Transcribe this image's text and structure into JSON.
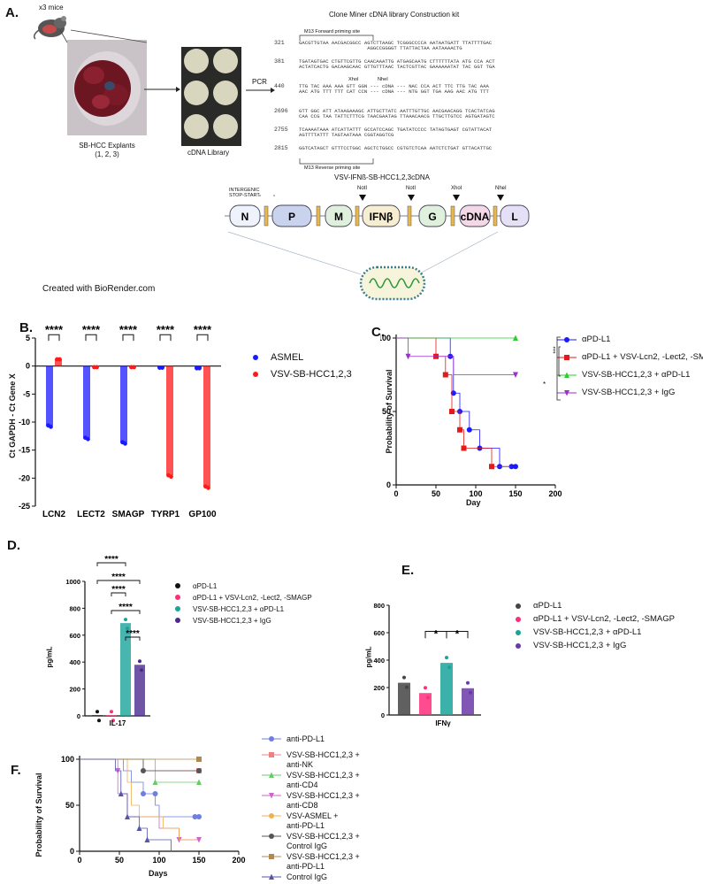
{
  "panels": {
    "a": {
      "letter": "A.",
      "mice_label": "x3 mice",
      "explant_label_line1": "SB-HCC Explants",
      "explant_label_line2": "(1, 2, 3)",
      "cdna_library_label": "cDNA Library",
      "pcr_label": "PCR",
      "kit_title": "Clone Miner cDNA library Construction kit",
      "m13_forward": "M13 Forward priming site",
      "m13_reverse": "M13 Reverse priming site",
      "seq_positions": [
        "321",
        "381",
        "440",
        "2696",
        "2755",
        "2815"
      ],
      "seq_lines": [
        [
          "GACGTTGTAA AACGACGGCC AGTCTTAAGC TCGGGCCCCA AATAATGATT TTATTTTGAC",
          "                       AGGCCGGGGT TTATTACTAA AATAAAACTG"
        ],
        [
          "TGATAGTGAC CTGTTCGTTG CAACAAATTG ATGAGCAATG CTTTTTTATA ATG CCA ACT",
          "ACTATCACTG GACAAGCAAC GTTGTTTAAC TACTCGTTAC GAAAAAATAT TAC GGT TGA"
        ],
        [
          "TTG TAC AAA AAA GTT GGN --- cDNA --- NAC CCA ACT TTC TTG TAC AAA",
          "AAC ATG TTT TTT CAT CCN --- cDNA --- NTG GGT TGA AAG AAC ATG TTT"
        ],
        [
          "GTT GGC ATT ATAAGAAAGC ATTGCTTATC AATTTGTTGC AACGAACAGG TCACTATCAG",
          "CAA CCG TAA TATTCTTTCG TAACGAATAG TTAAACAACG TTGCTTGTCC AGTGATAGTC"
        ],
        [
          "TCAAAATAAA ATCATTATTT GCCATCCAGC TGATATCCCC TATAGTGAGT CGTATTACAT",
          "AGTTTTATTT TAGTAATAAA CGGTAGGTCG"
        ],
        [
          "GGTCATAGCT GTTTCCTGGC AGCTCTGGCC CGTGTCTCAA AATCTCTGAT GTTACATTGC",
          ""
        ]
      ],
      "xhol_label": "XhoI",
      "nhel_label": "NheI",
      "construct_title": "VSV-IFNß-SB-HCC1,2,3cDNA",
      "intergenic_line1": "INTERGENIC",
      "intergenic_line2": "STOP-START",
      "construct_segments": [
        "N",
        "P",
        "M",
        "IFNβ",
        "G",
        "cDNA",
        "L"
      ],
      "site_labels": [
        "NotI",
        "NotI",
        "XhoI",
        "NheI"
      ],
      "biorender": "Created with BioRender.com"
    },
    "b": {
      "letter": "B.",
      "ylabel": "Ct GAPDH - Ct Gene X",
      "sig": "****"
    },
    "c": {
      "letter": "C.",
      "ylabel": "Probability of Survival",
      "xlabel": "Day",
      "sig_star": "*",
      "sig_triple": "***"
    },
    "d": {
      "letter": "D.",
      "ylabel": "pg/mL",
      "sig": "****"
    },
    "e": {
      "letter": "E.",
      "ylabel": "pg/mL",
      "sig": "*"
    },
    "f": {
      "letter": "F.",
      "ylabel": "Probability of Survival",
      "xlabel": "Days"
    }
  },
  "chart_data": [
    {
      "id": "B",
      "type": "bar",
      "categories": [
        "LCN2",
        "LECT2",
        "SMAGP",
        "TYRP1",
        "GP100"
      ],
      "series": [
        {
          "name": "ASMEL",
          "values": [
            -10.6,
            -12.8,
            -13.6,
            -0.3,
            -0.4
          ],
          "color": "#1a1aff"
        },
        {
          "name": "VSV-SB-HCC1,2,3",
          "values": [
            1.2,
            -0.2,
            -0.2,
            -19.5,
            -21.5
          ],
          "color": "#ff1a1a"
        }
      ],
      "ylim": [
        -25,
        5
      ],
      "yticks": [
        5,
        0,
        -5,
        -10,
        -15,
        -20,
        -25
      ]
    },
    {
      "id": "C",
      "type": "line",
      "xlim": [
        0,
        200
      ],
      "ylim": [
        0,
        100
      ],
      "xticks": [
        0,
        50,
        100,
        150,
        200
      ],
      "yticks": [
        0,
        50,
        100
      ],
      "series": [
        {
          "name": "αPD-L1",
          "color": "#1a1aff",
          "marker": "circle",
          "points": [
            [
              0,
              100
            ],
            [
              68,
              100
            ],
            [
              68,
              87.5
            ],
            [
              72,
              87.5
            ],
            [
              72,
              62.5
            ],
            [
              80,
              62.5
            ],
            [
              80,
              50
            ],
            [
              92,
              50
            ],
            [
              92,
              37.5
            ],
            [
              105,
              37.5
            ],
            [
              105,
              25
            ],
            [
              130,
              25
            ],
            [
              130,
              12.5
            ],
            [
              150,
              12.5
            ]
          ],
          "marks": [
            [
              68,
              87.5
            ],
            [
              72,
              62.5
            ],
            [
              80,
              50
            ],
            [
              92,
              37.5
            ],
            [
              105,
              25
            ],
            [
              130,
              12.5
            ],
            [
              145,
              12.5
            ],
            [
              150,
              12.5
            ]
          ]
        },
        {
          "name": "αPD-L1 + VSV-Lcn2, -Lect2, -SMAGP",
          "color": "#e41a1a",
          "marker": "square",
          "points": [
            [
              0,
              100
            ],
            [
              50,
              100
            ],
            [
              50,
              87.5
            ],
            [
              62,
              87.5
            ],
            [
              62,
              75
            ],
            [
              70,
              75
            ],
            [
              70,
              50
            ],
            [
              80,
              50
            ],
            [
              80,
              37.5
            ],
            [
              85,
              37.5
            ],
            [
              85,
              25
            ],
            [
              120,
              25
            ],
            [
              120,
              12.5
            ],
            [
              145,
              12.5
            ]
          ],
          "marks": [
            [
              50,
              87.5
            ],
            [
              62,
              75
            ],
            [
              70,
              50
            ],
            [
              80,
              37.5
            ],
            [
              85,
              25
            ],
            [
              120,
              12.5
            ]
          ]
        },
        {
          "name": "VSV-SB-HCC1,2,3 + αPD-L1",
          "color": "#2ecc2e",
          "marker": "triangle-up",
          "points": [
            [
              0,
              100
            ],
            [
              150,
              100
            ]
          ],
          "marks": [
            [
              150,
              100
            ]
          ]
        },
        {
          "name": "VSV-SB-HCC1,2,3 + IgG",
          "color": "#9b2fd0",
          "marker": "triangle-down",
          "points": [
            [
              0,
              100
            ],
            [
              15,
              100
            ],
            [
              15,
              87.5
            ],
            [
              72,
              87.5
            ],
            [
              72,
              75
            ],
            [
              150,
              75
            ]
          ],
          "marks": [
            [
              15,
              87.5
            ],
            [
              150,
              75
            ]
          ]
        }
      ]
    },
    {
      "id": "D",
      "type": "bar",
      "categories": [
        "IL-17"
      ],
      "xlabel": "IL-17",
      "ylim": [
        0,
        1000
      ],
      "yticks": [
        0,
        200,
        400,
        600,
        800,
        1000
      ],
      "series": [
        {
          "name": "αPD-L1",
          "value": 5,
          "color": "#111111"
        },
        {
          "name": "αPD-L1 + VSV-Lcn2, -Lect2, -SMAGP",
          "value": 5,
          "color": "#ff2d7a"
        },
        {
          "name": "VSV-SB-HCC1,2,3 + αPD-L1",
          "value": 690,
          "color": "#1aa39a"
        },
        {
          "name": "VSV-SB-HCC1,2,3 + IgG",
          "value": 380,
          "color": "#4b2a8f"
        }
      ]
    },
    {
      "id": "E",
      "type": "bar",
      "categories": [
        "IFNγ"
      ],
      "xlabel": "IFNγ",
      "ylim": [
        0,
        800
      ],
      "yticks": [
        0,
        200,
        400,
        600,
        800
      ],
      "series": [
        {
          "name": "αPD-L1",
          "value": 235,
          "color": "#444444"
        },
        {
          "name": "αPD-L1 + VSV-Lcn2, -Lect2, -SMAGP",
          "value": 160,
          "color": "#ff2d7a"
        },
        {
          "name": "VSV-SB-HCC1,2,3 + αPD-L1",
          "value": 380,
          "color": "#1aa39a"
        },
        {
          "name": "VSV-SB-HCC1,2,3 + IgG",
          "value": 195,
          "color": "#6a3aa8"
        }
      ]
    },
    {
      "id": "F",
      "type": "line",
      "xlim": [
        0,
        200
      ],
      "ylim": [
        0,
        100
      ],
      "xticks": [
        0,
        50,
        100,
        150,
        200
      ],
      "yticks": [
        0,
        50,
        100
      ],
      "series": [
        {
          "name": "anti-PD-L1",
          "color": "#6d7fe0",
          "marker": "circle",
          "points": [
            [
              0,
              100
            ],
            [
              55,
              100
            ],
            [
              55,
              87.5
            ],
            [
              65,
              87.5
            ],
            [
              65,
              75
            ],
            [
              80,
              75
            ],
            [
              80,
              62.5
            ],
            [
              95,
              62.5
            ],
            [
              95,
              50
            ],
            [
              100,
              50
            ],
            [
              100,
              37.5
            ],
            [
              150,
              37.5
            ]
          ],
          "marks": [
            [
              80,
              62.5
            ],
            [
              95,
              62.5
            ],
            [
              145,
              37.5
            ],
            [
              150,
              37.5
            ]
          ]
        },
        {
          "name": "VSV-SB-HCC1,2,3 + anti-NK",
          "color": "#f08080",
          "marker": "square",
          "points": [
            [
              0,
              100
            ],
            [
              80,
              100
            ],
            [
              80,
              87.5
            ],
            [
              150,
              87.5
            ]
          ],
          "marks": [
            [
              150,
              87.5
            ]
          ]
        },
        {
          "name": "VSV-SB-HCC1,2,3 + anti-CD4",
          "color": "#66cc66",
          "marker": "triangle-up",
          "points": [
            [
              0,
              100
            ],
            [
              95,
              100
            ],
            [
              95,
              75
            ],
            [
              150,
              75
            ]
          ],
          "marks": [
            [
              95,
              75
            ],
            [
              150,
              75
            ]
          ]
        },
        {
          "name": "VSV-SB-HCC1,2,3 + anti-CD8",
          "color": "#cc66cc",
          "marker": "triangle-down",
          "points": [
            [
              0,
              100
            ],
            [
              48,
              100
            ],
            [
              48,
              62.5
            ],
            [
              60,
              62.5
            ],
            [
              60,
              37.5
            ],
            [
              100,
              37.5
            ],
            [
              100,
              25
            ],
            [
              125,
              25
            ],
            [
              125,
              12.5
            ],
            [
              150,
              12.5
            ]
          ],
          "marks": [
            [
              48,
              87.5
            ],
            [
              125,
              12.5
            ],
            [
              150,
              12.5
            ]
          ]
        },
        {
          "name": "VSV-ASMEL + anti-PD-L1",
          "color": "#f0b050",
          "marker": "none",
          "points": [
            [
              0,
              100
            ],
            [
              60,
              100
            ],
            [
              60,
              75
            ],
            [
              65,
              75
            ],
            [
              65,
              50
            ],
            [
              75,
              50
            ],
            [
              75,
              37.5
            ],
            [
              105,
              37.5
            ],
            [
              105,
              25
            ],
            [
              125,
              25
            ],
            [
              125,
              12.5
            ],
            [
              145,
              12.5
            ]
          ],
          "marks": []
        },
        {
          "name": "VSV-SB-HCC1,2,3 + Control IgG",
          "color": "#555555",
          "marker": "circle",
          "points": [
            [
              0,
              100
            ],
            [
              80,
              100
            ],
            [
              80,
              87.5
            ],
            [
              150,
              87.5
            ]
          ],
          "marks": [
            [
              80,
              87.5
            ],
            [
              150,
              87.5
            ]
          ]
        },
        {
          "name": "VSV-SB-HCC1,2,3 + anti-PD-L1",
          "color": "#b08850",
          "marker": "square",
          "points": [
            [
              0,
              100
            ],
            [
              150,
              100
            ]
          ],
          "marks": [
            [
              150,
              100
            ]
          ]
        },
        {
          "name": "Control IgG",
          "color": "#5555aa",
          "marker": "triangle-up",
          "points": [
            [
              0,
              100
            ],
            [
              45,
              100
            ],
            [
              45,
              87.5
            ],
            [
              52,
              87.5
            ],
            [
              52,
              62.5
            ],
            [
              60,
              62.5
            ],
            [
              60,
              37.5
            ],
            [
              75,
              37.5
            ],
            [
              75,
              25
            ],
            [
              85,
              25
            ],
            [
              85,
              12.5
            ],
            [
              115,
              12.5
            ],
            [
              115,
              0
            ]
          ],
          "marks": [
            [
              52,
              62.5
            ],
            [
              60,
              37.5
            ],
            [
              75,
              25
            ],
            [
              85,
              12.5
            ]
          ]
        }
      ]
    }
  ]
}
